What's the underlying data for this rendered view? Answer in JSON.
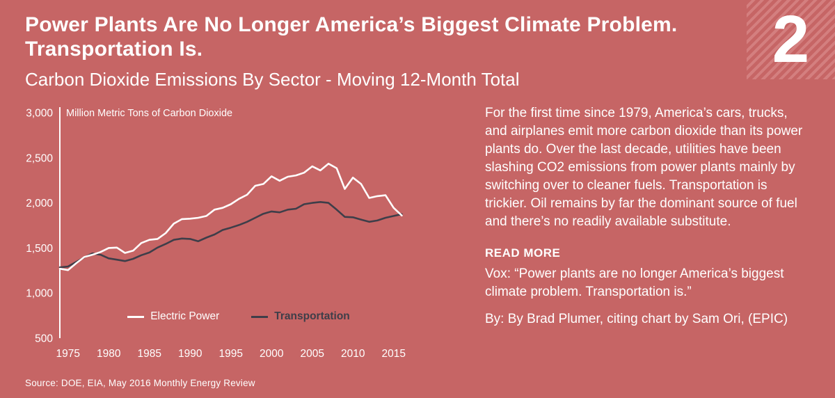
{
  "header": {
    "title_line1": "Power Plants Are No Longer America’s Biggest Climate Problem.",
    "title_line2": "Transportation Is.",
    "subtitle": "Carbon Dioxide Emissions By Sector - Moving 12-Month Total",
    "slide_number": "2"
  },
  "aside": {
    "description": "For the first time since 1979, America’s cars, trucks, and airplanes emit more carbon dioxide than its power plants do. Over the last decade, utilities have been slashing CO2 emissions from power plants mainly by switching over to cleaner fuels. Transportation is trickier. Oil remains by far the dominant source of fuel and there’s no readily available substitute.",
    "read_more_label": "READ MORE",
    "read_more_source": "Vox: “Power plants are no longer America’s biggest climate problem. Transportation is.”",
    "read_more_byline": "By: By Brad Plumer, citing chart by Sam Ori, (EPIC)"
  },
  "footer": {
    "source": "Source: DOE, EIA, May 2016 Monthly Energy Review"
  },
  "colors": {
    "background": "#c66565",
    "stripe": "#d47f7f",
    "electric_power_line": "#ffffff",
    "transportation_line": "#3e3e49"
  },
  "chart_data": {
    "type": "line",
    "title": "Carbon Dioxide Emissions By Sector - Moving 12-Month Total",
    "ylabel": "Million Metric Tons of Carbon Dioxide",
    "xlabel": "",
    "ylim": [
      500,
      3000
    ],
    "grid": false,
    "legend_position": "bottom-inside",
    "x_ticks": [
      1975,
      1980,
      1985,
      1990,
      1995,
      2000,
      2005,
      2010,
      2015
    ],
    "y_ticks": [
      {
        "value": 3000,
        "label": "3,000"
      },
      {
        "value": 2500,
        "label": "2,500"
      },
      {
        "value": 2000,
        "label": "2,000"
      },
      {
        "value": 1500,
        "label": "1,500"
      },
      {
        "value": 1000,
        "label": "1,000"
      },
      {
        "value": 500,
        "label": "500"
      }
    ],
    "x": [
      1974,
      1975,
      1976,
      1977,
      1978,
      1979,
      1980,
      1981,
      1982,
      1983,
      1984,
      1985,
      1986,
      1987,
      1988,
      1989,
      1990,
      1991,
      1992,
      1993,
      1994,
      1995,
      1996,
      1997,
      1998,
      1999,
      2000,
      2001,
      2002,
      2003,
      2004,
      2005,
      2006,
      2007,
      2008,
      2009,
      2010,
      2011,
      2012,
      2013,
      2014,
      2015,
      2016
    ],
    "series": [
      {
        "name": "Electric Power",
        "color": "#ffffff",
        "values": [
          1270,
          1255,
          1330,
          1400,
          1425,
          1455,
          1500,
          1505,
          1445,
          1470,
          1555,
          1590,
          1600,
          1665,
          1770,
          1820,
          1825,
          1835,
          1855,
          1925,
          1945,
          1985,
          2045,
          2090,
          2190,
          2210,
          2295,
          2245,
          2290,
          2305,
          2335,
          2405,
          2360,
          2435,
          2385,
          2155,
          2280,
          2210,
          2055,
          2075,
          2085,
          1945,
          1860
        ]
      },
      {
        "name": "Transportation",
        "color": "#3e3e49",
        "values": [
          1285,
          1295,
          1345,
          1395,
          1440,
          1425,
          1385,
          1370,
          1355,
          1380,
          1420,
          1450,
          1505,
          1545,
          1590,
          1605,
          1600,
          1575,
          1615,
          1650,
          1700,
          1725,
          1755,
          1790,
          1835,
          1880,
          1905,
          1895,
          1925,
          1935,
          1985,
          2000,
          2010,
          2000,
          1925,
          1845,
          1840,
          1815,
          1790,
          1805,
          1835,
          1855,
          1875
        ]
      }
    ]
  }
}
